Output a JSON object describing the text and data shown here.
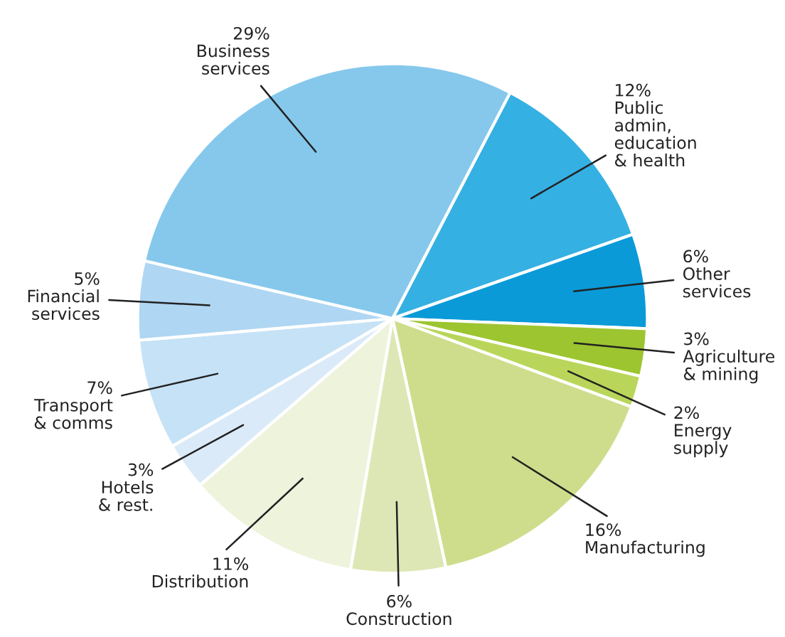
{
  "chart_data": {
    "type": "pie",
    "categories": [
      "Public\nadmin,\neducation\n& health",
      "Other\nservices",
      "Agriculture\n& mining",
      "Energy\nsupply",
      "Manufacturing",
      "Construction",
      "Distribution",
      "Hotels\n& rest.",
      "Transport\n& comms",
      "Financial\nservices",
      "Business\nservices"
    ],
    "values": [
      12,
      6,
      3,
      2,
      16,
      6,
      11,
      3,
      7,
      5,
      29
    ],
    "value_labels": [
      "12%",
      "6%",
      "3%",
      "2%",
      "16%",
      "6%",
      "11%",
      "3%",
      "7%",
      "5%",
      "29%"
    ],
    "colors": [
      "#35b0e3",
      "#0a9ad8",
      "#9dc530",
      "#b9d65a",
      "#cedd8b",
      "#dde7b5",
      "#eef3dc",
      "#daeaf8",
      "#c6e2f6",
      "#afd6f2",
      "#85c8ec"
    ],
    "legend": false
  }
}
